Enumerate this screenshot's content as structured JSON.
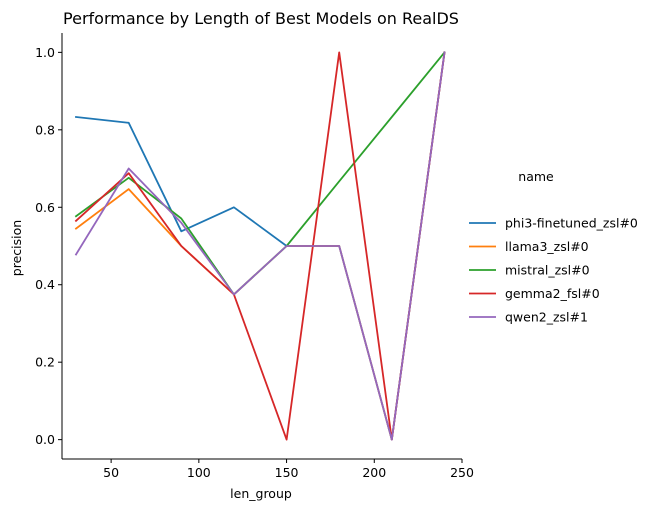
{
  "chart_data": {
    "type": "line",
    "title": "Performance by Length of Best Models on RealDS",
    "xlabel": "len_group",
    "ylabel": "precision",
    "xlim": [
      22,
      250
    ],
    "ylim": [
      -0.05,
      1.05
    ],
    "xticks": [
      50,
      100,
      150,
      200,
      250
    ],
    "yticks": [
      0.0,
      0.2,
      0.4,
      0.6,
      0.8,
      1.0
    ],
    "grid": false,
    "legend_title": "name",
    "legend_placement": "right",
    "series": [
      {
        "name": "phi3-finetuned_zsl#0",
        "color": "#1f77b4",
        "x": [
          30,
          60,
          90,
          120,
          150,
          180,
          210,
          240
        ],
        "y": [
          0.833,
          0.818,
          0.538,
          0.6,
          0.5,
          0.5,
          0.0,
          1.0
        ]
      },
      {
        "name": "llama3_zsl#0",
        "color": "#ff7f0e",
        "x": [
          30,
          60,
          90,
          120,
          150,
          180,
          210,
          240
        ],
        "y": [
          0.545,
          0.647,
          0.5,
          0.375,
          0.5,
          0.5,
          0.0,
          1.0
        ]
      },
      {
        "name": "mistral_zsl#0",
        "color": "#2ca02c",
        "x": [
          30,
          60,
          90,
          120,
          150,
          180,
          210,
          240
        ],
        "y": [
          0.577,
          0.676,
          0.571,
          0.375,
          0.5,
          0.667,
          0.833,
          1.0
        ]
      },
      {
        "name": "gemma2_fsl#0",
        "color": "#d62728",
        "x": [
          30,
          60,
          90,
          120,
          150,
          180,
          210,
          240
        ],
        "y": [
          0.565,
          0.688,
          0.5,
          0.375,
          0.0,
          1.0,
          0.0,
          1.0
        ]
      },
      {
        "name": "qwen2_zsl#1",
        "color": "#9467bd",
        "x": [
          30,
          60,
          90,
          120,
          150,
          180,
          210,
          240
        ],
        "y": [
          0.478,
          0.7,
          0.56,
          0.375,
          0.5,
          0.5,
          0.0,
          1.0
        ]
      }
    ]
  }
}
